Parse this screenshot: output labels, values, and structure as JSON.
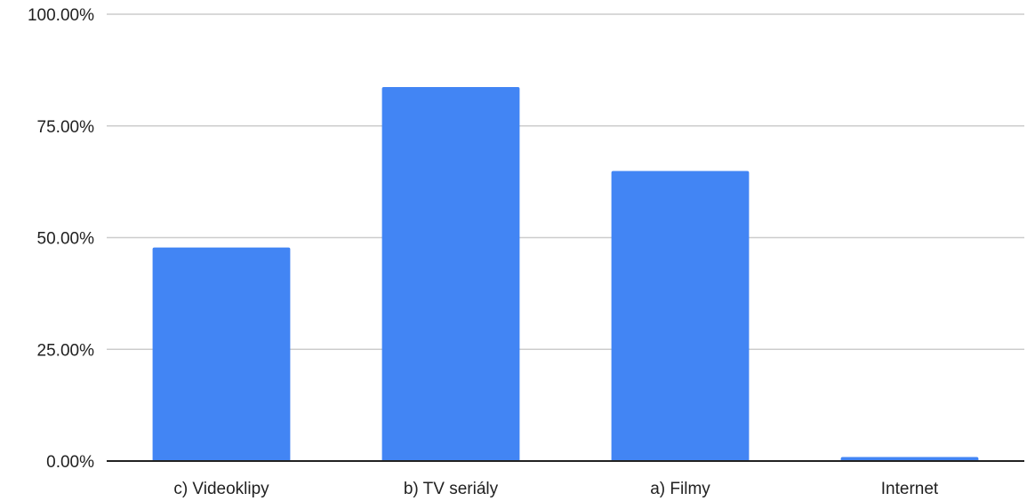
{
  "chart_data": {
    "type": "bar",
    "categories": [
      "c) Videoklipy",
      "b) TV seriály",
      "a) Filmy",
      "Internet"
    ],
    "values": [
      47.8,
      83.7,
      64.9,
      0.9
    ],
    "y_ticks": [
      "0.00%",
      "25.00%",
      "50.00%",
      "75.00%",
      "100.00%"
    ],
    "ylim": [
      0,
      100
    ],
    "grid": true,
    "legend": "none",
    "bar_color": "#4285f4"
  }
}
